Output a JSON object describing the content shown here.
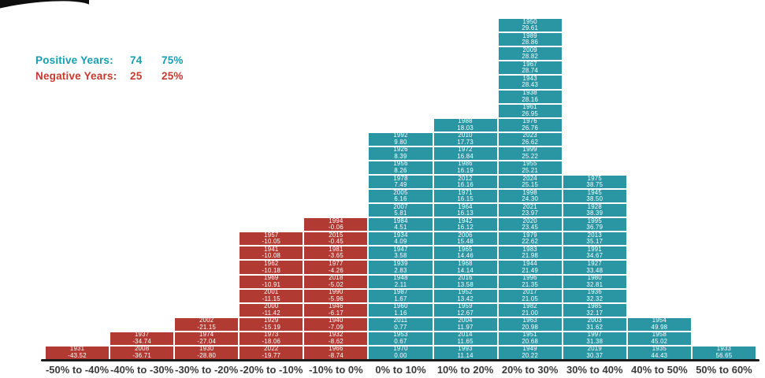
{
  "legend": {
    "positive": {
      "label": "Positive Years:",
      "count": "74",
      "pct": "75%"
    },
    "negative": {
      "label": "Negative Years:",
      "count": "25",
      "pct": "25%"
    }
  },
  "colors": {
    "positive_fill": "#2A95A3",
    "negative_fill": "#B13A33",
    "positive_text": "#159EAF",
    "negative_text": "#C33A2F",
    "axis_label": "#3A3A3A",
    "axis_line": "#1B1B1B"
  },
  "chart_data": {
    "type": "bar",
    "categories": [
      "-50% to -40%",
      "-40% to -30%",
      "-30% to -20%",
      "-20% to -10%",
      "-10% to 0%",
      "0% to 10%",
      "10% to 20%",
      "20% to 30%",
      "30% to 40%",
      "40% to 50%",
      "50% to 60%"
    ],
    "values": [
      1,
      2,
      3,
      9,
      10,
      16,
      17,
      24,
      13,
      3,
      1
    ],
    "xlabel": "",
    "ylabel": "",
    "legend_position": "top-left",
    "grid": false,
    "bins": [
      {
        "label": "-50% to -40%",
        "sign": "negative",
        "cells": [
          {
            "year": "1931",
            "value": "-43.52"
          }
        ]
      },
      {
        "label": "-40% to -30%",
        "sign": "negative",
        "cells": [
          {
            "year": "1937",
            "value": "-34.74"
          },
          {
            "year": "2008",
            "value": "-36.71"
          }
        ]
      },
      {
        "label": "-30% to -20%",
        "sign": "negative",
        "cells": [
          {
            "year": "2002",
            "value": "-21.15"
          },
          {
            "year": "1974",
            "value": "-27.04"
          },
          {
            "year": "1930",
            "value": "-28.80"
          }
        ]
      },
      {
        "label": "-20% to -10%",
        "sign": "negative",
        "cells": [
          {
            "year": "1957",
            "value": "-10.05"
          },
          {
            "year": "1941",
            "value": "-10.08"
          },
          {
            "year": "1962",
            "value": "-10.18"
          },
          {
            "year": "1969",
            "value": "-10.91"
          },
          {
            "year": "2001",
            "value": "-11.15"
          },
          {
            "year": "2000",
            "value": "-11.42"
          },
          {
            "year": "1929",
            "value": "-15.19"
          },
          {
            "year": "1973",
            "value": "-18.06"
          },
          {
            "year": "2022",
            "value": "-19.77"
          }
        ]
      },
      {
        "label": "-10% to 0%",
        "sign": "negative",
        "cells": [
          {
            "year": "1994",
            "value": "-0.06"
          },
          {
            "year": "2015",
            "value": "-0.45"
          },
          {
            "year": "1981",
            "value": "-3.65"
          },
          {
            "year": "1977",
            "value": "-4.26"
          },
          {
            "year": "2018",
            "value": "-5.02"
          },
          {
            "year": "1990",
            "value": "-5.96"
          },
          {
            "year": "1946",
            "value": "-6.17"
          },
          {
            "year": "1940",
            "value": "-7.09"
          },
          {
            "year": "1932",
            "value": "-8.62"
          },
          {
            "year": "1966",
            "value": "-8.74"
          }
        ]
      },
      {
        "label": "0% to 10%",
        "sign": "positive",
        "cells": [
          {
            "year": "1992",
            "value": "9.80"
          },
          {
            "year": "1926",
            "value": "8.39"
          },
          {
            "year": "1956",
            "value": "8.26"
          },
          {
            "year": "1978",
            "value": "7.49"
          },
          {
            "year": "2005",
            "value": "6.16"
          },
          {
            "year": "2007",
            "value": "5.81"
          },
          {
            "year": "1984",
            "value": "4.51"
          },
          {
            "year": "1934",
            "value": "4.09"
          },
          {
            "year": "1947",
            "value": "3.58"
          },
          {
            "year": "1939",
            "value": "2.83"
          },
          {
            "year": "1948",
            "value": "2.11"
          },
          {
            "year": "1987",
            "value": "1.67"
          },
          {
            "year": "1960",
            "value": "1.16"
          },
          {
            "year": "2011",
            "value": "0.77"
          },
          {
            "year": "1953",
            "value": "0.67"
          },
          {
            "year": "1970",
            "value": "0.00"
          }
        ]
      },
      {
        "label": "10% to 20%",
        "sign": "positive",
        "cells": [
          {
            "year": "1988",
            "value": "18.03"
          },
          {
            "year": "2010",
            "value": "17.73"
          },
          {
            "year": "1972",
            "value": "16.84"
          },
          {
            "year": "1986",
            "value": "16.19"
          },
          {
            "year": "2012",
            "value": "16.16"
          },
          {
            "year": "1971",
            "value": "16.15"
          },
          {
            "year": "1964",
            "value": "16.13"
          },
          {
            "year": "1942",
            "value": "16.12"
          },
          {
            "year": "2006",
            "value": "15.48"
          },
          {
            "year": "1965",
            "value": "14.46"
          },
          {
            "year": "1968",
            "value": "14.14"
          },
          {
            "year": "2016",
            "value": "13.58"
          },
          {
            "year": "1952",
            "value": "13.42"
          },
          {
            "year": "1959",
            "value": "12.67"
          },
          {
            "year": "2004",
            "value": "11.97"
          },
          {
            "year": "2014",
            "value": "11.65"
          },
          {
            "year": "1993",
            "value": "11.14"
          }
        ]
      },
      {
        "label": "20% to 30%",
        "sign": "positive",
        "cells": [
          {
            "year": "1950",
            "value": "29.61"
          },
          {
            "year": "1989",
            "value": "28.86"
          },
          {
            "year": "2009",
            "value": "28.82"
          },
          {
            "year": "1967",
            "value": "28.74"
          },
          {
            "year": "1943",
            "value": "28.43"
          },
          {
            "year": "1938",
            "value": "28.16"
          },
          {
            "year": "1961",
            "value": "26.95"
          },
          {
            "year": "1976",
            "value": "26.76"
          },
          {
            "year": "2023",
            "value": "26.62"
          },
          {
            "year": "1999",
            "value": "25.22"
          },
          {
            "year": "1955",
            "value": "25.21"
          },
          {
            "year": "2024",
            "value": "25.15"
          },
          {
            "year": "1998",
            "value": "24.30"
          },
          {
            "year": "2021",
            "value": "23.97"
          },
          {
            "year": "2020",
            "value": "23.45"
          },
          {
            "year": "1979",
            "value": "22.62"
          },
          {
            "year": "1983",
            "value": "21.98"
          },
          {
            "year": "1944",
            "value": "21.49"
          },
          {
            "year": "1996",
            "value": "21.35"
          },
          {
            "year": "2017",
            "value": "21.05"
          },
          {
            "year": "1982",
            "value": "21.00"
          },
          {
            "year": "1963",
            "value": "20.98"
          },
          {
            "year": "1951",
            "value": "20.68"
          },
          {
            "year": "1949",
            "value": "20.22"
          }
        ]
      },
      {
        "label": "30% to 40%",
        "sign": "positive",
        "cells": [
          {
            "year": "1975",
            "value": "38.75"
          },
          {
            "year": "1945",
            "value": "38.50"
          },
          {
            "year": "1928",
            "value": "38.39"
          },
          {
            "year": "1995",
            "value": "36.79"
          },
          {
            "year": "2013",
            "value": "35.17"
          },
          {
            "year": "1991",
            "value": "34.67"
          },
          {
            "year": "1927",
            "value": "33.48"
          },
          {
            "year": "1980",
            "value": "32.81"
          },
          {
            "year": "1936",
            "value": "32.32"
          },
          {
            "year": "1985",
            "value": "32.17"
          },
          {
            "year": "2003",
            "value": "31.62"
          },
          {
            "year": "1997",
            "value": "31.38"
          },
          {
            "year": "2019",
            "value": "30.37"
          }
        ]
      },
      {
        "label": "40% to 50%",
        "sign": "positive",
        "cells": [
          {
            "year": "1954",
            "value": "49.98"
          },
          {
            "year": "1958",
            "value": "45.02"
          },
          {
            "year": "1935",
            "value": "44.43"
          }
        ]
      },
      {
        "label": "50% to 60%",
        "sign": "positive",
        "cells": [
          {
            "year": "1933",
            "value": "56.65"
          }
        ]
      }
    ]
  }
}
